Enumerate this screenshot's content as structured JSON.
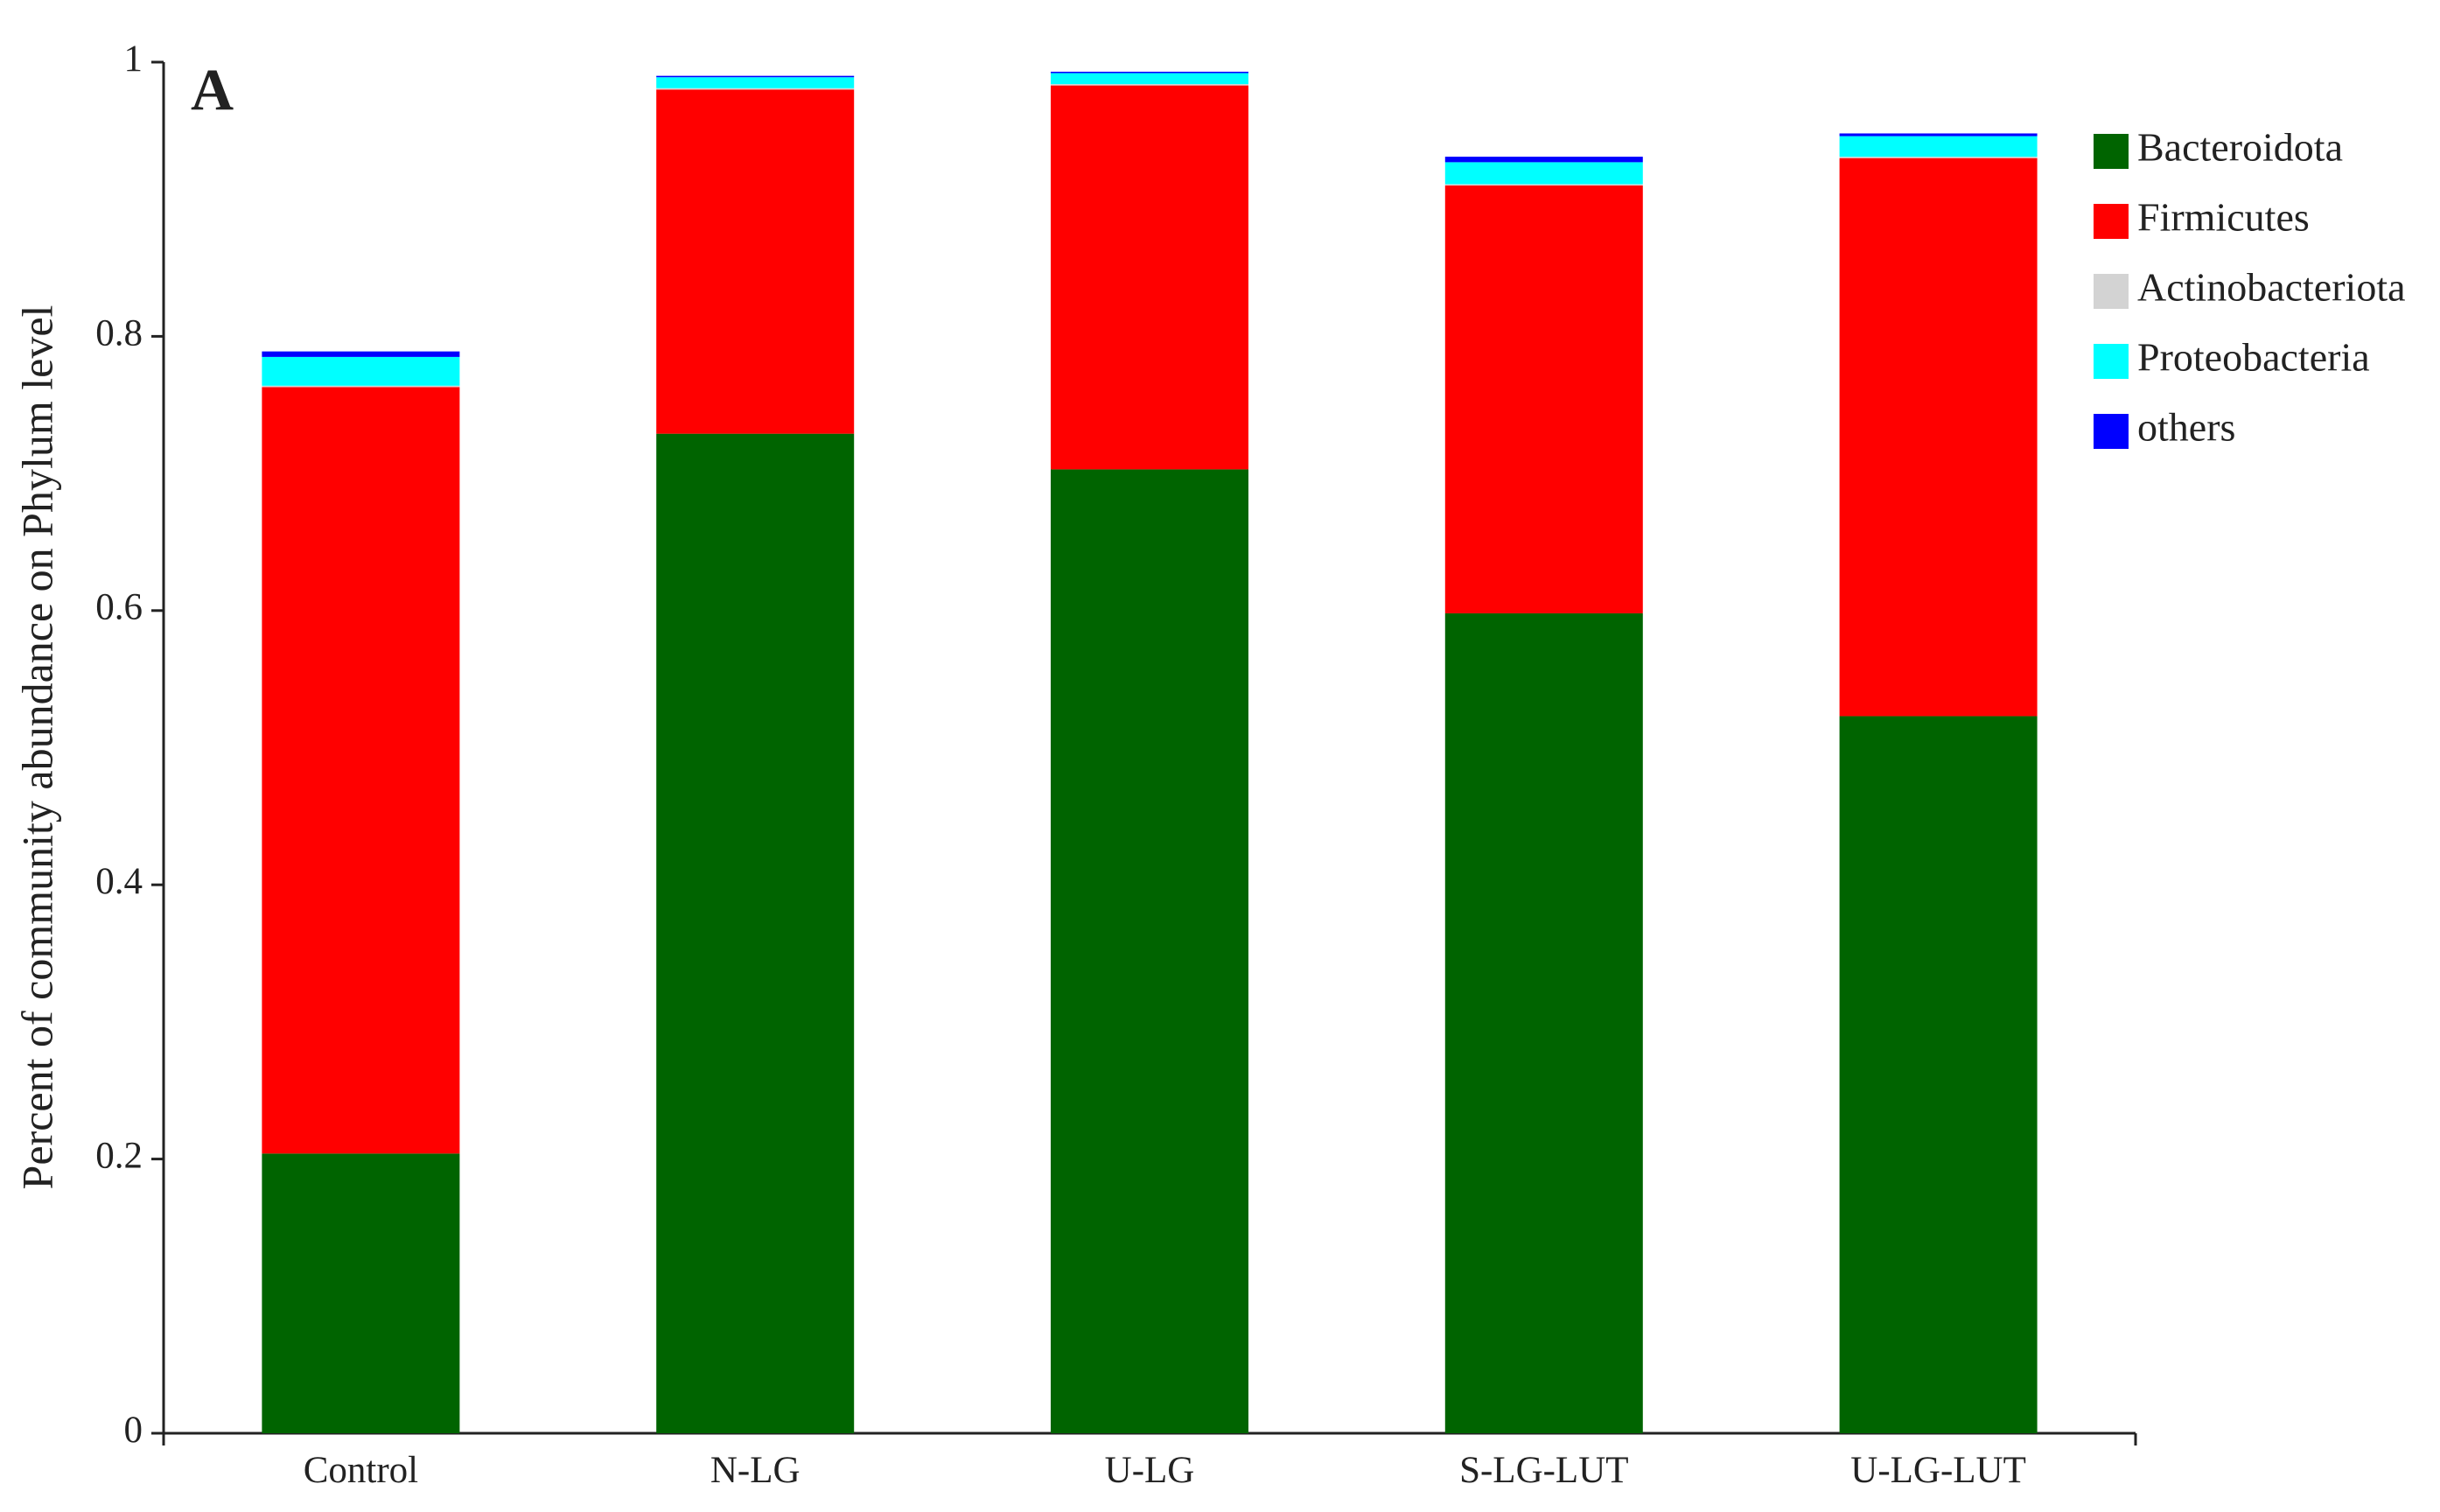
{
  "chart_data": {
    "type": "stacked_bar",
    "panel_label": "A",
    "y_label": "Percent of community abundance on Phylum level",
    "categories": [
      "Control",
      "N-LG",
      "U-LG",
      "S-LG-LUT",
      "U-LG-LUT"
    ],
    "series": [
      {
        "name": "Bacteroidota",
        "color": "#006400",
        "values": [
          0.204,
          0.729,
          0.703,
          0.598,
          0.523
        ]
      },
      {
        "name": "Firmicutes",
        "color": "#ff0000",
        "values": [
          0.559,
          0.251,
          0.28,
          0.312,
          0.407
        ]
      },
      {
        "name": "Actinobacteriota",
        "color": "#d3d3d3",
        "values": [
          0.001,
          0.001,
          0.001,
          0.001,
          0.001
        ]
      },
      {
        "name": "Proteobacteria",
        "color": "#00ffff",
        "values": [
          0.021,
          0.008,
          0.008,
          0.016,
          0.015
        ]
      },
      {
        "name": "others",
        "color": "#0000ff",
        "values": [
          0.004,
          0.001,
          0.001,
          0.004,
          0.002
        ]
      }
    ],
    "ylim": [
      0,
      1
    ],
    "yticks": [
      0,
      0.2,
      0.4,
      0.6,
      0.8,
      1
    ],
    "legend": "upper right"
  }
}
